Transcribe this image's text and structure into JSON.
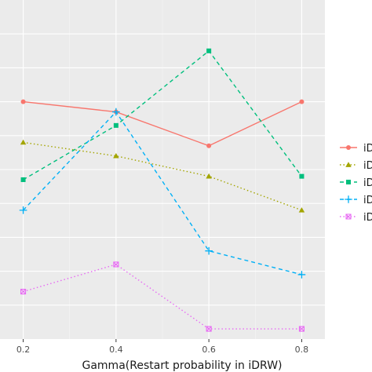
{
  "chart_data": {
    "type": "line",
    "title": "",
    "xlabel": "Gamma(Restart probability in iDRW)",
    "ylabel": "",
    "x": [
      0.2,
      0.4,
      0.6,
      0.8
    ],
    "x_tick_labels": [
      "0.2",
      "0.4",
      "0.6",
      "0.8"
    ],
    "xlim": [
      0.15,
      0.85
    ],
    "ylim": [
      0,
      10
    ],
    "y_gridlines": [
      1,
      2,
      3,
      4,
      5,
      6,
      7,
      8,
      9
    ],
    "grid": true,
    "legend_position": "right",
    "series": [
      {
        "label": "iD",
        "color": "#f8766d",
        "linestyle": "solid",
        "marker": "circle",
        "values": [
          7.0,
          6.7,
          5.7,
          7.0
        ]
      },
      {
        "label": "iD",
        "color": "#a3a500",
        "linestyle": "dotted",
        "marker": "triangle",
        "values": [
          5.8,
          5.4,
          4.8,
          3.8
        ]
      },
      {
        "label": "iD",
        "color": "#00bf7d",
        "linestyle": "dashed",
        "marker": "square",
        "values": [
          4.7,
          6.3,
          8.5,
          4.8
        ]
      },
      {
        "label": "iD",
        "color": "#00b0f6",
        "linestyle": "dashed",
        "marker": "plus",
        "values": [
          3.8,
          6.7,
          2.6,
          1.9
        ]
      },
      {
        "label": "iD",
        "color": "#e76bf3",
        "linestyle": "dotted",
        "marker": "boxx",
        "values": [
          1.4,
          2.2,
          0.3,
          0.3
        ]
      }
    ]
  }
}
